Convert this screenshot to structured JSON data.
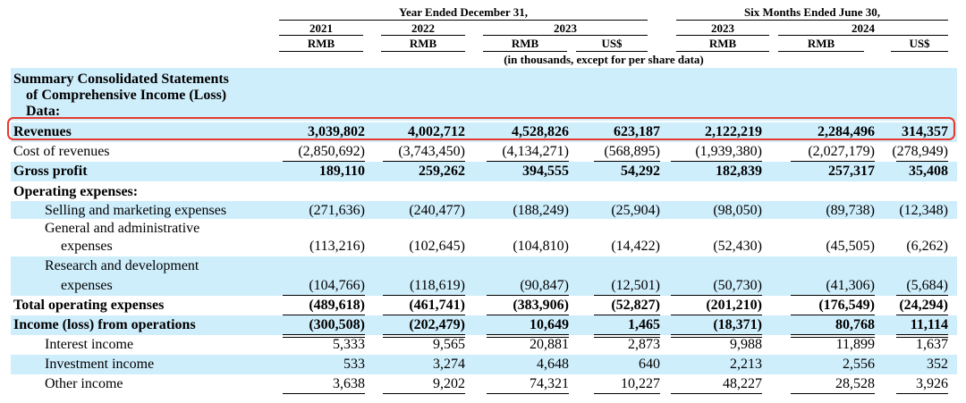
{
  "header": {
    "group1": "Year Ended December 31,",
    "group2": "Six Months Ended June 30,",
    "year_2021": "2021",
    "year_2022": "2022",
    "year_2023": "2023",
    "year_2023b": "2023",
    "year_2024": "2024",
    "cur_2021": "RMB",
    "cur_2022": "RMB",
    "cur_2023_rmb": "RMB",
    "cur_2023_usd": "US$",
    "cur_2023b": "RMB",
    "cur_2024_rmb": "RMB",
    "cur_2024_usd": "US$",
    "units_note": "(in thousands, except for per share data)"
  },
  "section_title_lines": [
    "Summary Consolidated Statements",
    "of Comprehensive Income (Loss)",
    "Data:"
  ],
  "rows": [
    {
      "label": "Revenues",
      "bold": true,
      "values": [
        "3,039,802",
        "4,002,712",
        "4,528,826",
        "623,187",
        "2,122,219",
        "2,284,496",
        "314,357"
      ],
      "highlight": true
    },
    {
      "label": "Cost of revenues",
      "bold": false,
      "values": [
        "(2,850,692)",
        "(3,743,450)",
        "(4,134,271)",
        "(568,895)",
        "(1,939,380)",
        "(2,027,179)",
        "(278,949)"
      ],
      "underline": "single"
    },
    {
      "label": "Gross profit",
      "bold": true,
      "values": [
        "189,110",
        "259,262",
        "394,555",
        "54,292",
        "182,839",
        "257,317",
        "35,408"
      ]
    },
    {
      "label": "Operating expenses:",
      "bold": true,
      "values": []
    },
    {
      "label": "Selling and marketing expenses",
      "bold": false,
      "indent": true,
      "values": [
        "(271,636)",
        "(240,477)",
        "(188,249)",
        "(25,904)",
        "(98,050)",
        "(89,738)",
        "(12,348)"
      ]
    },
    {
      "label": "General and administrative",
      "label2": "expenses",
      "bold": false,
      "indent": true,
      "values": [
        "(113,216)",
        "(102,645)",
        "(104,810)",
        "(14,422)",
        "(52,430)",
        "(45,505)",
        "(6,262)"
      ]
    },
    {
      "label": "Research and development",
      "label2": "expenses",
      "bold": false,
      "indent": true,
      "values": [
        "(104,766)",
        "(118,619)",
        "(90,847)",
        "(12,501)",
        "(50,730)",
        "(41,306)",
        "(5,684)"
      ],
      "underline": "single"
    },
    {
      "label": "Total operating expenses",
      "bold": true,
      "values": [
        "(489,618)",
        "(461,741)",
        "(383,906)",
        "(52,827)",
        "(201,210)",
        "(176,549)",
        "(24,294)"
      ],
      "underline": "single"
    },
    {
      "label": "Income (loss) from operations",
      "bold": true,
      "values": [
        "(300,508)",
        "(202,479)",
        "10,649",
        "1,465",
        "(18,371)",
        "80,768",
        "11,114"
      ],
      "underline": "double"
    },
    {
      "label": "Interest income",
      "bold": false,
      "indent": true,
      "values": [
        "5,333",
        "9,565",
        "20,881",
        "2,873",
        "9,988",
        "11,899",
        "1,637"
      ]
    },
    {
      "label": "Investment income",
      "bold": false,
      "indent": true,
      "values": [
        "533",
        "3,274",
        "4,648",
        "640",
        "2,213",
        "2,556",
        "352"
      ]
    },
    {
      "label": "Other income",
      "bold": false,
      "indent": true,
      "values": [
        "3,638",
        "9,202",
        "74,321",
        "10,227",
        "48,227",
        "28,528",
        "3,926"
      ],
      "underline": "single"
    }
  ],
  "colors": {
    "band": "#cfeefc",
    "highlight_border": "#e8392e"
  }
}
